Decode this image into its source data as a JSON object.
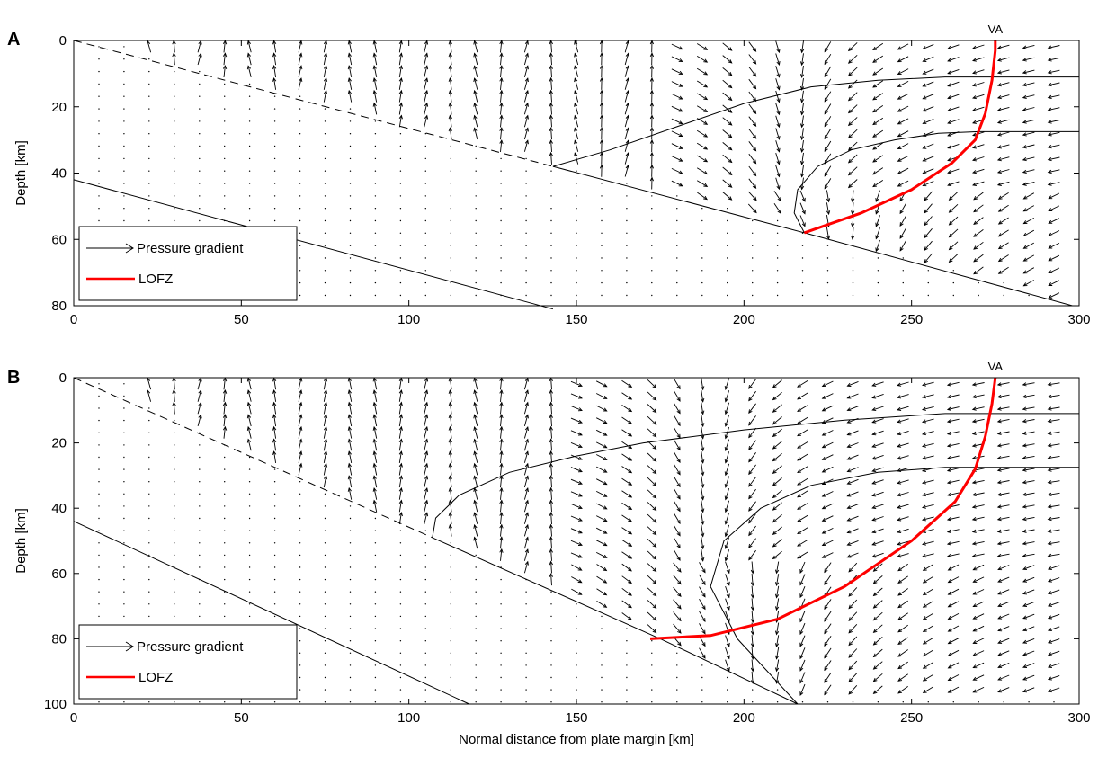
{
  "chart_data": [
    {
      "type": "quiver",
      "panel": "A",
      "xlabel": "",
      "ylabel": "Depth [km]",
      "xlim": [
        0,
        300
      ],
      "ylim": [
        80,
        0
      ],
      "xticks": [
        0,
        50,
        100,
        150,
        200,
        250,
        300
      ],
      "yticks": [
        0,
        20,
        40,
        60,
        80
      ],
      "annotation": "VA",
      "annotation_x": 275,
      "legend": [
        "Pressure gradient",
        "LOFZ"
      ],
      "slab_top": [
        [
          0,
          0
        ],
        [
          143,
          38
        ],
        [
          218,
          58
        ],
        [
          298,
          80
        ]
      ],
      "slab_top_dashed_until_x": 143,
      "slab_bottom": [
        [
          0,
          42
        ],
        [
          143,
          81
        ]
      ],
      "moho": [
        [
          143,
          38
        ],
        [
          160,
          33
        ],
        [
          180,
          26
        ],
        [
          200,
          19
        ],
        [
          220,
          14
        ],
        [
          240,
          12
        ],
        [
          260,
          11
        ],
        [
          300,
          11
        ]
      ],
      "isotherm": [
        [
          218,
          58
        ],
        [
          215,
          52
        ],
        [
          216,
          45
        ],
        [
          222,
          38
        ],
        [
          232,
          33
        ],
        [
          245,
          30
        ],
        [
          258,
          28
        ],
        [
          270,
          27.5
        ],
        [
          300,
          27.5
        ]
      ],
      "lofz": [
        [
          218,
          58
        ],
        [
          235,
          52
        ],
        [
          250,
          45
        ],
        [
          262,
          37
        ],
        [
          269,
          30
        ],
        [
          272,
          22
        ],
        [
          274,
          12
        ],
        [
          275,
          3
        ],
        [
          275,
          0
        ]
      ],
      "mantle_region": {
        "x": [
          150,
          298
        ],
        "y": [
          0,
          78
        ]
      },
      "upwelling_line": [
        [
          143,
          38
        ],
        [
          218,
          58
        ],
        [
          298,
          80
        ]
      ],
      "flow_center": [
        215,
        45
      ],
      "upper_plate_right_x": 300
    },
    {
      "type": "quiver",
      "panel": "B",
      "xlabel": "Normal distance from plate margin [km]",
      "ylabel": "Depth [km]",
      "xlim": [
        0,
        300
      ],
      "ylim": [
        100,
        0
      ],
      "xticks": [
        0,
        50,
        100,
        150,
        200,
        250,
        300
      ],
      "yticks": [
        0,
        20,
        40,
        60,
        80,
        100
      ],
      "annotation": "VA",
      "annotation_x": 275,
      "legend": [
        "Pressure gradient",
        "LOFZ"
      ],
      "slab_top": [
        [
          0,
          0
        ],
        [
          107,
          49
        ],
        [
          175,
          80
        ],
        [
          216,
          100
        ]
      ],
      "slab_top_dashed_until_x": 107,
      "slab_bottom": [
        [
          0,
          44
        ],
        [
          118,
          100
        ]
      ],
      "moho": [
        [
          107,
          49
        ],
        [
          108,
          43
        ],
        [
          115,
          36
        ],
        [
          130,
          29
        ],
        [
          150,
          24
        ],
        [
          170,
          20
        ],
        [
          200,
          16
        ],
        [
          230,
          13
        ],
        [
          260,
          11
        ],
        [
          300,
          11
        ]
      ],
      "isotherm": [
        [
          216,
          100
        ],
        [
          198,
          80
        ],
        [
          190,
          64
        ],
        [
          194,
          50
        ],
        [
          205,
          40
        ],
        [
          220,
          33
        ],
        [
          240,
          29
        ],
        [
          260,
          27.5
        ],
        [
          300,
          27.5
        ]
      ],
      "lofz": [
        [
          172,
          80
        ],
        [
          190,
          79
        ],
        [
          210,
          74
        ],
        [
          230,
          64
        ],
        [
          250,
          50
        ],
        [
          263,
          38
        ],
        [
          269,
          28
        ],
        [
          272,
          18
        ],
        [
          274,
          8
        ],
        [
          275,
          0
        ]
      ],
      "mantle_region": {
        "x": [
          110,
          300
        ],
        "y": [
          0,
          99
        ]
      },
      "upwelling_line": [
        [
          107,
          49
        ],
        [
          175,
          80
        ],
        [
          216,
          100
        ]
      ],
      "flow_center": [
        190,
        55
      ],
      "upper_plate_right_x": 300
    }
  ],
  "colors": {
    "lofz": "#ff0000",
    "axis": "#000000",
    "arrow": "#000000"
  }
}
